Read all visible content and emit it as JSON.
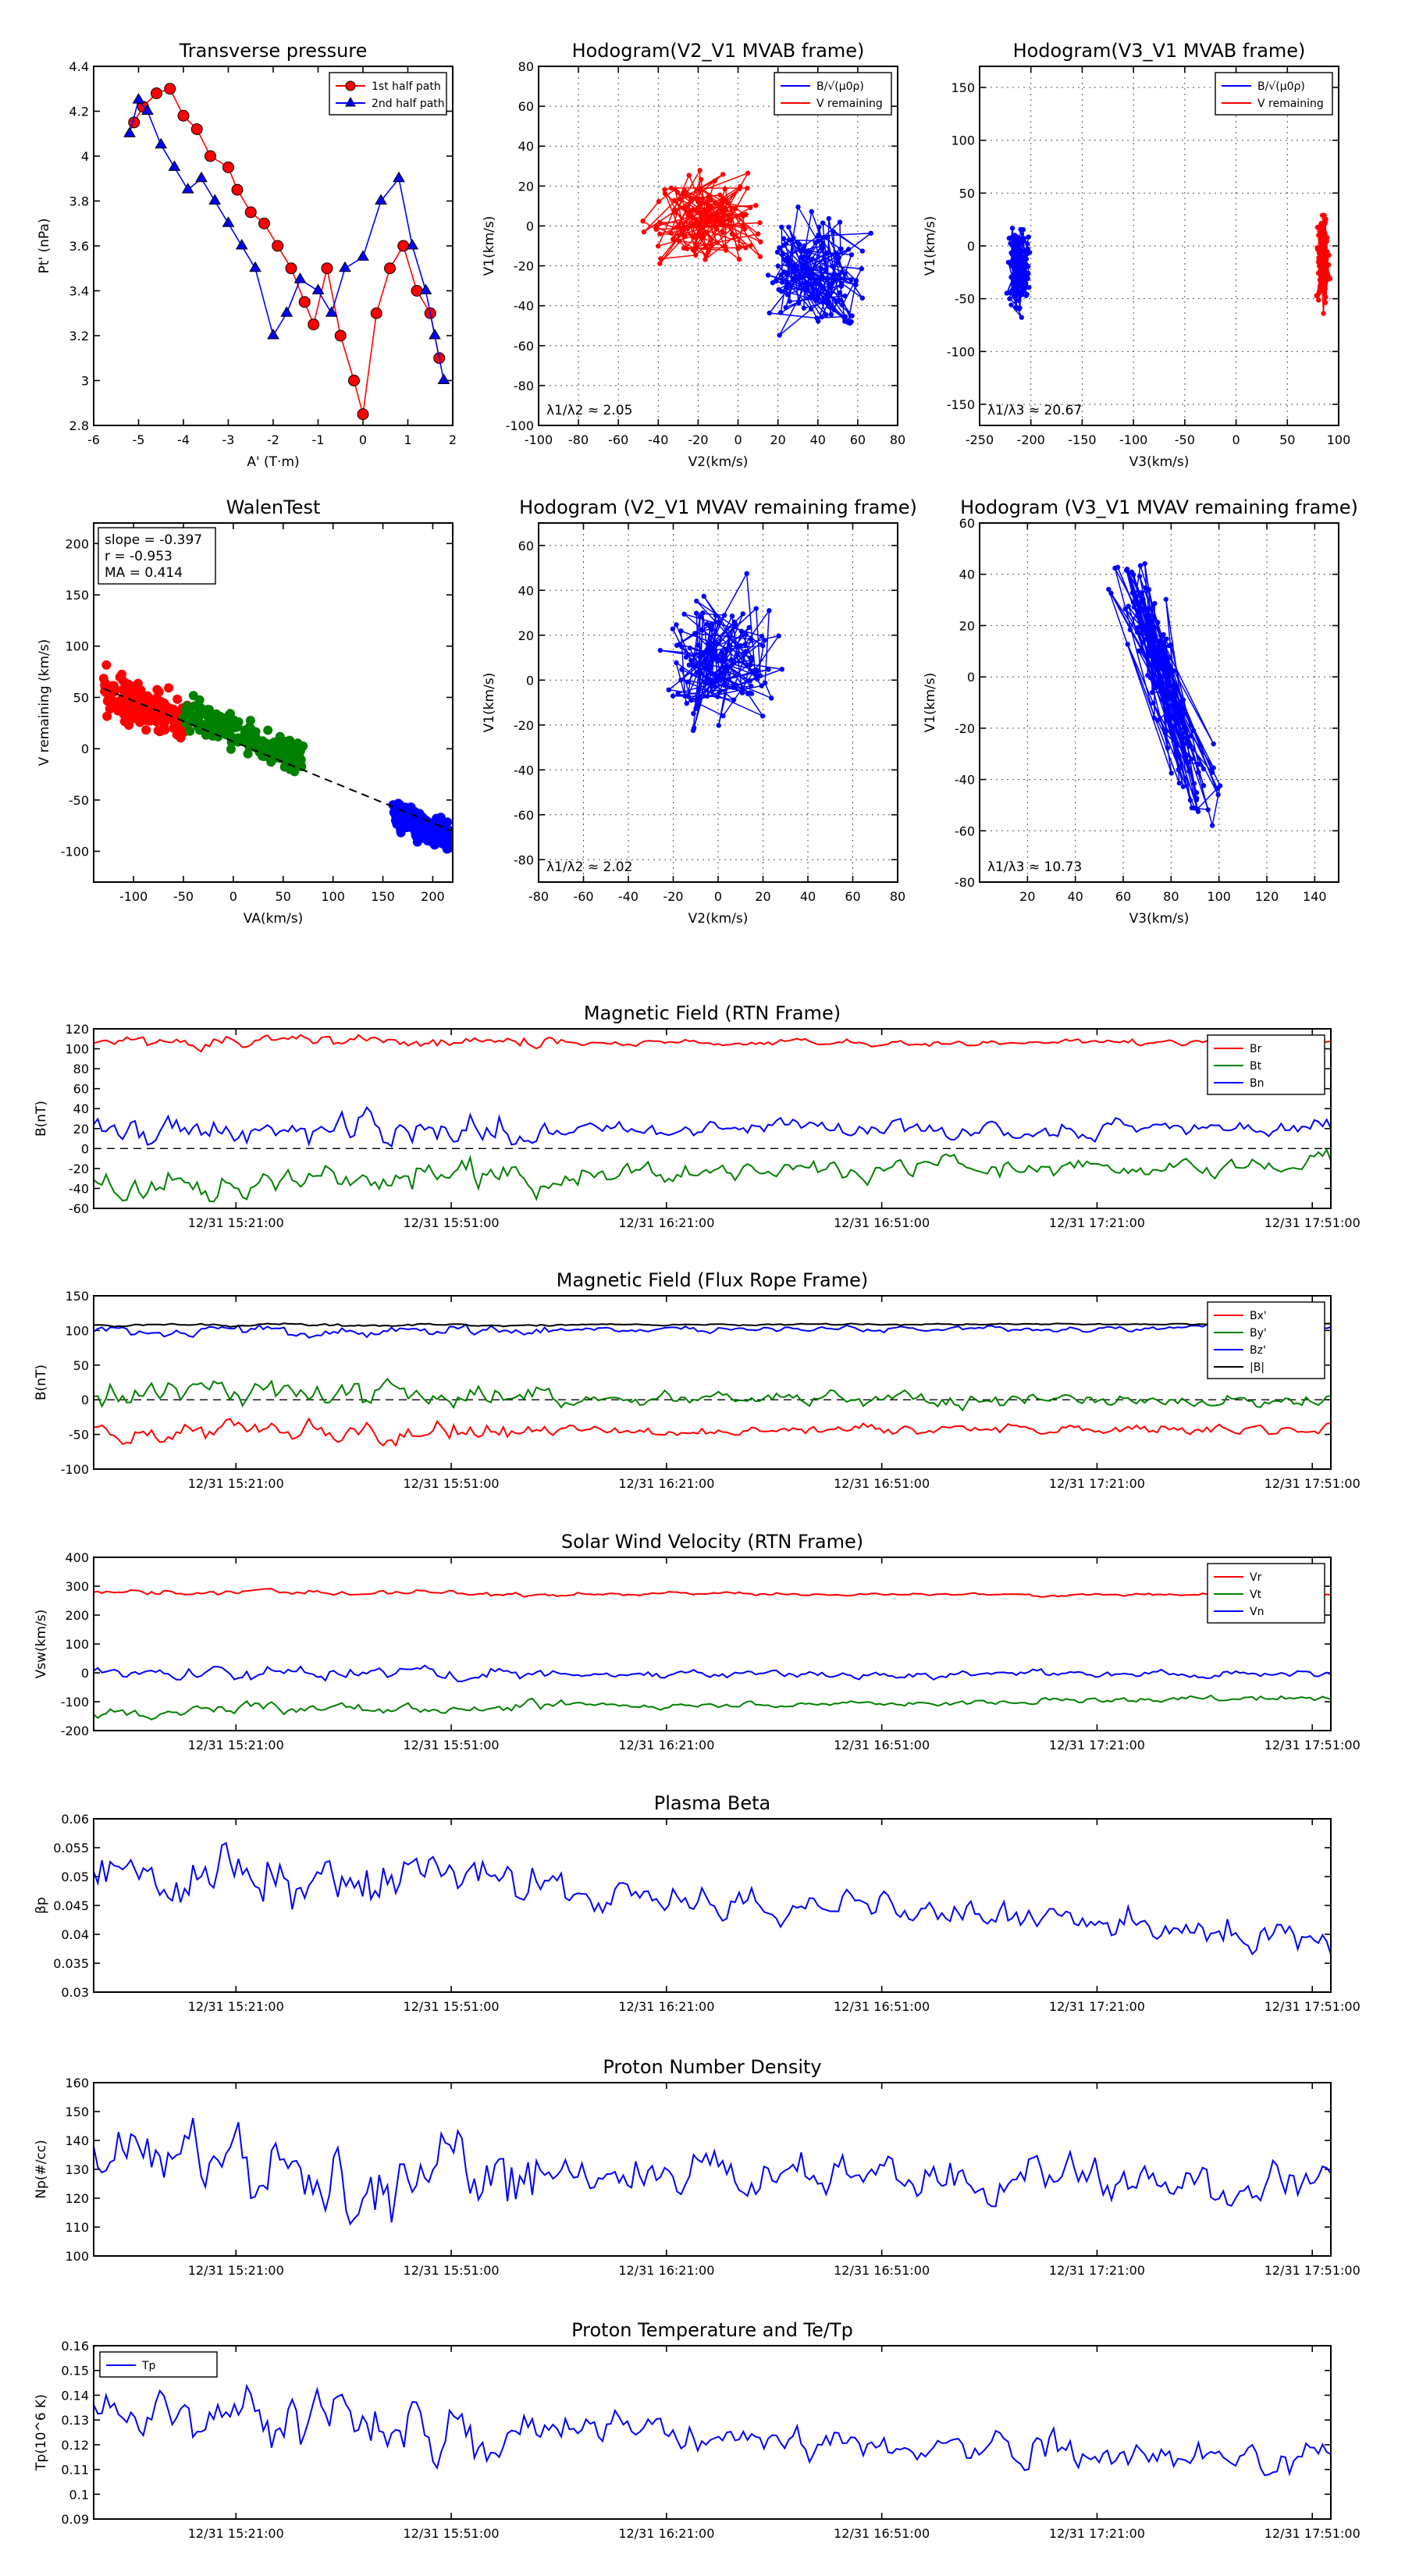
{
  "figure": {
    "time_ticks": [
      "12/31 15:21:00",
      "12/31 15:51:00",
      "12/31 16:21:00",
      "12/31 16:51:00",
      "12/31 17:21:00",
      "12/31 17:51:00"
    ],
    "colors": {
      "red": "#ff0000",
      "blue": "#0000ff",
      "green": "#008000",
      "black": "#000000"
    }
  },
  "chart_data": [
    {
      "id": "p_tp",
      "type": "scatter",
      "title": "Transverse pressure",
      "xlabel": "A' (T·m)",
      "ylabel": "Pt' (nPa)",
      "xlim": [
        -6,
        2
      ],
      "ylim": [
        2.8,
        4.4
      ],
      "xticks": [
        -6,
        -5,
        -4,
        -3,
        -2,
        -1,
        0,
        1,
        2
      ],
      "yticks": [
        2.8,
        3.0,
        3.2,
        3.4,
        3.6,
        3.8,
        4.0,
        4.2,
        4.4
      ],
      "grid": false,
      "legend_position": "top-right",
      "series": [
        {
          "name": "1st half path",
          "color": "#ff0000",
          "marker": "circle",
          "points": [
            [
              -5.1,
              4.15
            ],
            [
              -4.9,
              4.22
            ],
            [
              -4.6,
              4.28
            ],
            [
              -4.3,
              4.3
            ],
            [
              -4.0,
              4.18
            ],
            [
              -3.7,
              4.12
            ],
            [
              -3.4,
              4.0
            ],
            [
              -3.0,
              3.95
            ],
            [
              -2.8,
              3.85
            ],
            [
              -2.5,
              3.75
            ],
            [
              -2.2,
              3.7
            ],
            [
              -1.9,
              3.6
            ],
            [
              -1.6,
              3.5
            ],
            [
              -1.3,
              3.35
            ],
            [
              -1.1,
              3.25
            ],
            [
              -0.8,
              3.5
            ],
            [
              -0.5,
              3.2
            ],
            [
              -0.2,
              3.0
            ],
            [
              0.0,
              2.85
            ],
            [
              0.3,
              3.3
            ],
            [
              0.6,
              3.5
            ],
            [
              0.9,
              3.6
            ],
            [
              1.2,
              3.4
            ],
            [
              1.5,
              3.3
            ],
            [
              1.7,
              3.1
            ]
          ]
        },
        {
          "name": "2nd half path",
          "color": "#0000ff",
          "marker": "triangle",
          "points": [
            [
              -5.2,
              4.1
            ],
            [
              -5.0,
              4.25
            ],
            [
              -4.8,
              4.2
            ],
            [
              -4.5,
              4.05
            ],
            [
              -4.2,
              3.95
            ],
            [
              -3.9,
              3.85
            ],
            [
              -3.6,
              3.9
            ],
            [
              -3.3,
              3.8
            ],
            [
              -3.0,
              3.7
            ],
            [
              -2.7,
              3.6
            ],
            [
              -2.4,
              3.5
            ],
            [
              -2.0,
              3.2
            ],
            [
              -1.7,
              3.3
            ],
            [
              -1.4,
              3.45
            ],
            [
              -1.0,
              3.4
            ],
            [
              -0.7,
              3.3
            ],
            [
              -0.4,
              3.5
            ],
            [
              0.0,
              3.55
            ],
            [
              0.4,
              3.8
            ],
            [
              0.8,
              3.9
            ],
            [
              1.1,
              3.6
            ],
            [
              1.4,
              3.4
            ],
            [
              1.6,
              3.2
            ],
            [
              1.8,
              3.0
            ]
          ]
        }
      ]
    },
    {
      "id": "p_hodo_v2v1_mvab",
      "type": "line",
      "title": "Hodogram(V2_V1 MVAB frame)",
      "xlabel": "V2(km/s)",
      "ylabel": "V1(km/s)",
      "xlim": [
        -100,
        80
      ],
      "ylim": [
        -100,
        80
      ],
      "xticks": [
        -100,
        -80,
        -60,
        -40,
        -20,
        0,
        20,
        40,
        60,
        80
      ],
      "yticks": [
        -100,
        -80,
        -60,
        -40,
        -20,
        0,
        20,
        40,
        60,
        80
      ],
      "grid": true,
      "legend_position": "top-right",
      "annotation": "λ1/λ2 ≈ 2.05",
      "series": [
        {
          "name": "B/√(μ0ρ)",
          "color": "#0000ff",
          "center": [
            38,
            -22
          ],
          "spread": [
            20,
            24
          ]
        },
        {
          "name": "V remaining",
          "color": "#ff0000",
          "center": [
            -18,
            4
          ],
          "spread": [
            22,
            18
          ]
        }
      ]
    },
    {
      "id": "p_hodo_v3v1_mvab",
      "type": "line",
      "title": "Hodogram(V3_V1 MVAB frame)",
      "xlabel": "V3(km/s)",
      "ylabel": "V1(km/s)",
      "xlim": [
        -250,
        100
      ],
      "ylim": [
        -170,
        170
      ],
      "xticks": [
        -250,
        -200,
        -150,
        -100,
        -50,
        0,
        50,
        100
      ],
      "yticks": [
        -150,
        -100,
        -50,
        0,
        50,
        100,
        150
      ],
      "grid": true,
      "legend_position": "top-right",
      "annotation": "λ1/λ3 ≈ 20.67",
      "series": [
        {
          "name": "B/√(μ0ρ)",
          "color": "#0000ff",
          "center": [
            -212,
            -20
          ],
          "spread": [
            8,
            30
          ]
        },
        {
          "name": "V remaining",
          "color": "#ff0000",
          "center": [
            85,
            -15
          ],
          "spread": [
            5,
            30
          ]
        }
      ]
    },
    {
      "id": "p_walen",
      "type": "scatter",
      "title": "WalenTest",
      "xlabel": "VA(km/s)",
      "ylabel": "V remaining (km/s)",
      "xlim": [
        -140,
        220
      ],
      "ylim": [
        -130,
        220
      ],
      "xticks": [
        -100,
        -50,
        0,
        50,
        100,
        150,
        200
      ],
      "yticks": [
        -100,
        -50,
        0,
        50,
        100,
        150,
        200
      ],
      "grid": false,
      "stats": {
        "slope": "slope = -0.397",
        "r": "r = -0.953",
        "ma": "MA = 0.414"
      },
      "fit_line": {
        "slope": -0.397,
        "intercept": 7
      },
      "series": [
        {
          "name": "red",
          "color": "#ff0000",
          "x_range": [
            -130,
            -45
          ],
          "fit_intercept": 5,
          "noise": 18
        },
        {
          "name": "green",
          "color": "#008000",
          "x_range": [
            -50,
            70
          ],
          "fit_intercept": 18,
          "noise": 14
        },
        {
          "name": "blue",
          "color": "#0000ff",
          "x_range": [
            160,
            220
          ],
          "fit_intercept": 0,
          "noise": 12
        }
      ]
    },
    {
      "id": "p_hodo_v2v1_mvav",
      "type": "line",
      "title": "Hodogram (V2_V1 MVAV remaining frame)",
      "xlabel": "V2(km/s)",
      "ylabel": "V1(km/s)",
      "xlim": [
        -80,
        80
      ],
      "ylim": [
        -90,
        70
      ],
      "xticks": [
        -80,
        -60,
        -40,
        -20,
        0,
        20,
        40,
        60,
        80
      ],
      "yticks": [
        -80,
        -60,
        -40,
        -20,
        0,
        20,
        40,
        60
      ],
      "grid": true,
      "annotation": "λ1/λ2 ≈ 2.02",
      "series": [
        {
          "name": "V",
          "color": "#0000ff",
          "center": [
            0,
            8
          ],
          "spread": [
            18,
            24
          ]
        }
      ]
    },
    {
      "id": "p_hodo_v3v1_mvav",
      "type": "line",
      "title": "Hodogram (V3_V1 MVAV remaining frame)",
      "xlabel": "V3(km/s)",
      "ylabel": "V1(km/s)",
      "xlim": [
        0,
        150
      ],
      "ylim": [
        -80,
        60
      ],
      "xticks": [
        20,
        40,
        60,
        80,
        100,
        120,
        140
      ],
      "yticks": [
        -80,
        -60,
        -40,
        -20,
        0,
        20,
        40,
        60
      ],
      "grid": true,
      "annotation": "λ1/λ3 ≈ 10.73",
      "series": [
        {
          "name": "V",
          "color": "#0000ff",
          "line_from": [
            62,
            45
          ],
          "line_to": [
            95,
            -55
          ],
          "spread": [
            8,
            0
          ]
        }
      ]
    },
    {
      "id": "ts_brtn",
      "type": "line",
      "title": "Magnetic Field (RTN Frame)",
      "ylabel": "B(nT)",
      "ylim": [
        -60,
        120
      ],
      "yticks": [
        -60,
        -40,
        -20,
        0,
        20,
        40,
        60,
        80,
        100,
        120
      ],
      "zero_line": true,
      "legend_position": "top-right",
      "series": [
        {
          "name": "Br",
          "color": "#ff0000",
          "mean": 106,
          "noise": 3,
          "trend": 0
        },
        {
          "name": "Bt",
          "color": "#008000",
          "mean": -28,
          "noise": 9,
          "trend": 18
        },
        {
          "name": "Bn",
          "color": "#0000ff",
          "mean": 20,
          "noise": 8,
          "trend": 0
        }
      ]
    },
    {
      "id": "ts_bfr",
      "type": "line",
      "title": "Magnetic Field (Flux Rope Frame)",
      "ylabel": "B(nT)",
      "ylim": [
        -100,
        150
      ],
      "yticks": [
        -100,
        -50,
        0,
        50,
        100,
        150
      ],
      "zero_line": true,
      "legend_position": "top-right",
      "series": [
        {
          "name": "Bx'",
          "color": "#ff0000",
          "mean": -45,
          "noise": 7,
          "trend": 5
        },
        {
          "name": "By'",
          "color": "#008000",
          "mean": 5,
          "noise": 9,
          "trend": -12
        },
        {
          "name": "Bz'",
          "color": "#0000ff",
          "mean": 100,
          "noise": 4,
          "trend": 5
        },
        {
          "name": "|B|",
          "color": "#000000",
          "mean": 108,
          "noise": 1,
          "trend": 2
        }
      ]
    },
    {
      "id": "ts_vsw",
      "type": "line",
      "title": "Solar Wind Velocity (RTN Frame)",
      "ylabel": "Vsw(km/s)",
      "ylim": [
        -200,
        400
      ],
      "yticks": [
        -200,
        -100,
        0,
        100,
        200,
        300,
        400
      ],
      "legend_position": "top-right",
      "series": [
        {
          "name": "Vr",
          "color": "#ff0000",
          "mean": 275,
          "noise": 5,
          "trend": -8
        },
        {
          "name": "Vt",
          "color": "#008000",
          "mean": -120,
          "noise": 10,
          "trend": 45
        },
        {
          "name": "Vn",
          "color": "#0000ff",
          "mean": -5,
          "noise": 12,
          "trend": 0
        }
      ]
    },
    {
      "id": "ts_beta",
      "type": "line",
      "title": "Plasma Beta",
      "ylabel": "βp",
      "ylim": [
        0.03,
        0.06
      ],
      "yticks": [
        0.03,
        0.035,
        0.04,
        0.045,
        0.05,
        0.055,
        0.06
      ],
      "series": [
        {
          "name": "beta",
          "color": "#0000ff",
          "mean": 0.048,
          "noise": 0.0025,
          "trend": -0.012
        }
      ]
    },
    {
      "id": "ts_np",
      "type": "line",
      "title": "Proton Number Density",
      "ylabel": "Np(#/cc)",
      "ylim": [
        100,
        160
      ],
      "yticks": [
        100,
        110,
        120,
        130,
        140,
        150,
        160
      ],
      "series": [
        {
          "name": "Np",
          "color": "#0000ff",
          "mean": 130,
          "noise": 7,
          "trend": -8
        }
      ]
    },
    {
      "id": "ts_tp",
      "type": "line",
      "title": "Proton Temperature and Te/Tp",
      "ylabel": "Tp(10^6 K)",
      "ylim": [
        0.09,
        0.16
      ],
      "yticks": [
        0.09,
        0.1,
        0.11,
        0.12,
        0.13,
        0.14,
        0.15,
        0.16
      ],
      "legend_position": "top-left",
      "series": [
        {
          "name": "Tp",
          "color": "#0000ff",
          "mean": 0.128,
          "noise": 0.006,
          "trend": -0.024
        }
      ]
    }
  ]
}
